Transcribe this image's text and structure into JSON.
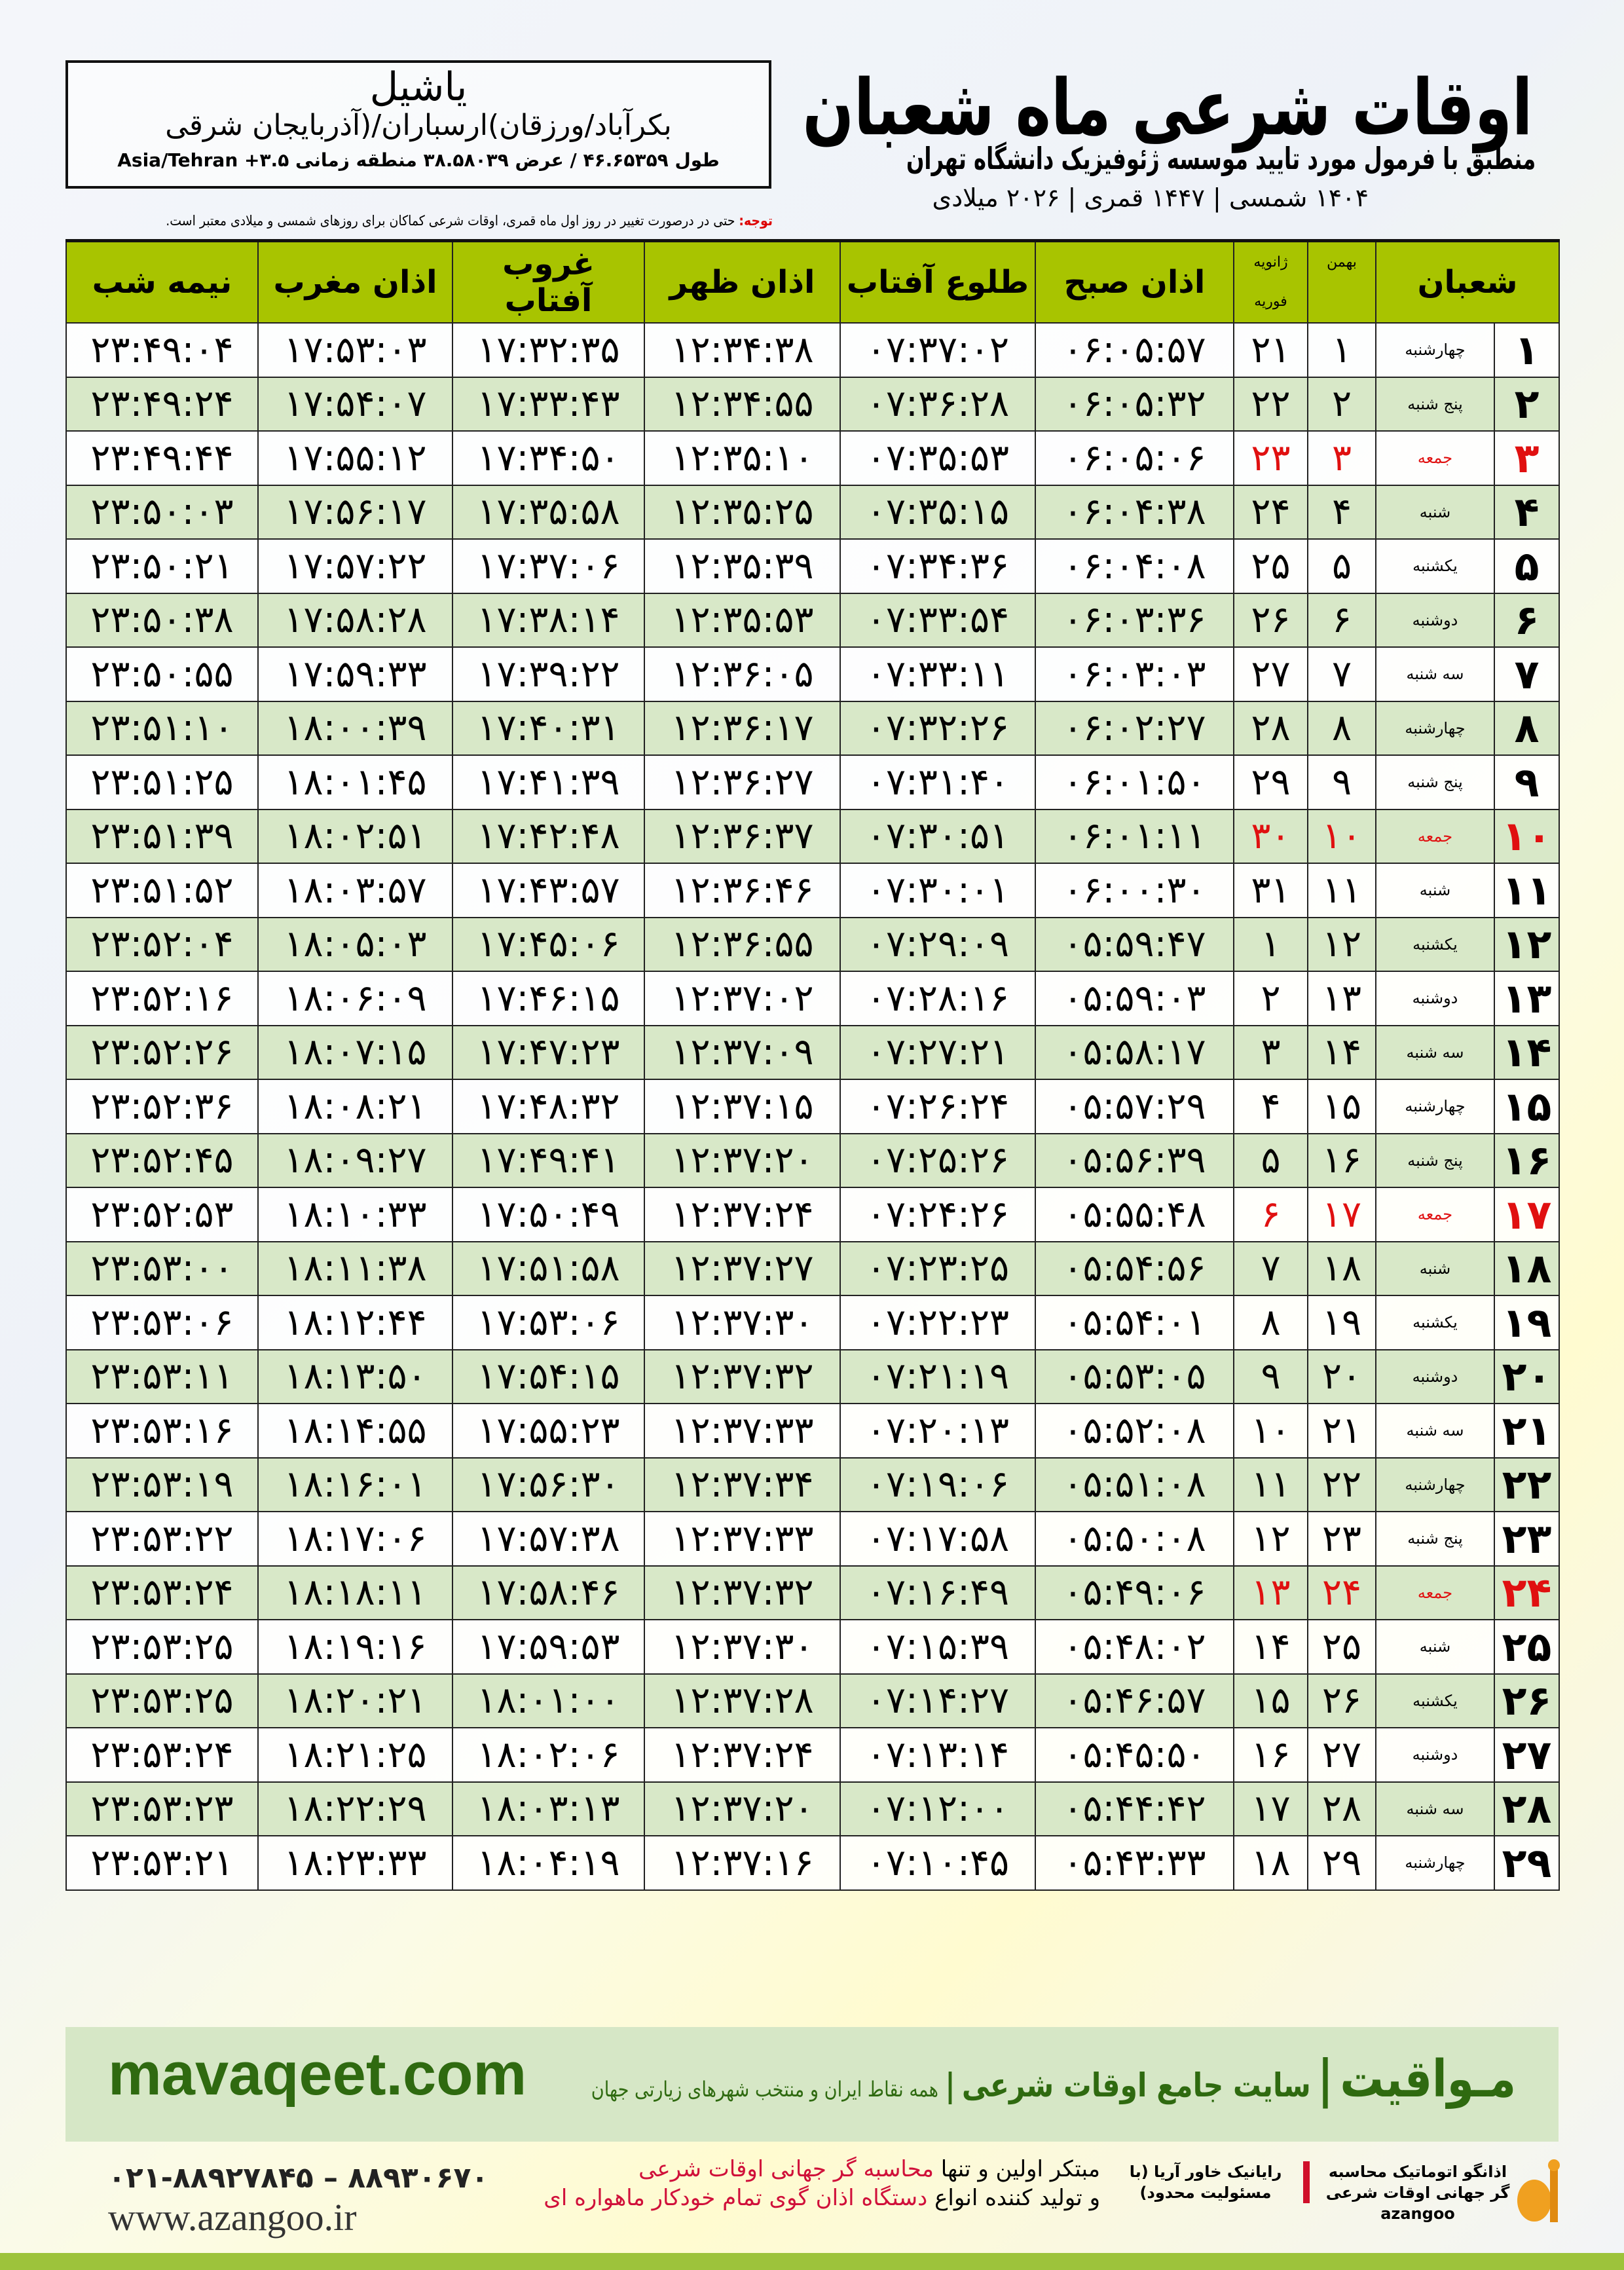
{
  "header": {
    "title": "اوقات شرعی ماه شعبان",
    "subtitle": "منطبق با فرمول مورد تایید موسسه ژئوفیزیک دانشگاه تهران",
    "dateline": "۱۴۰۴ شمسی | ۱۴۴۷ قمری | ۲۰۲۶ میلادی"
  },
  "location": {
    "name": "یاشیل",
    "region": "بکرآباد/ورزقان)ارسباران/(آذربایجان شرقی",
    "coords": "طول ۴۶.۶۵۳۵۹ / عرض ۳۸.۵۸۰۳۹ منطقه زمانی ۳.۵+ Asia/Tehran"
  },
  "note": {
    "label": "توجه:",
    "text": " حتی در درصورت تغییر در روز اول ماه قمری، اوقات شرعی کماکان برای روزهای شمسی و میلادی معتبر است."
  },
  "table": {
    "headers": {
      "shaban": "شعبان",
      "bahman": "بهمن",
      "greg_top": "ژانویه",
      "greg_bottom": "فوریه",
      "fajr": "اذان صبح",
      "sunrise": "طلوع آفتاب",
      "dhuhr": "اذان ظهر",
      "sunset": "غروب آفتاب",
      "maghrib": "اذان مغرب",
      "midnight": "نیمه شب"
    },
    "friday_color": "#e01010",
    "header_color": "#a8c400",
    "rows": [
      [
        "۱",
        "چهارشنبه",
        "۱",
        "۲۱",
        "۰۶:۰۵:۵۷",
        "۰۷:۳۷:۰۲",
        "۱۲:۳۴:۳۸",
        "۱۷:۳۲:۳۵",
        "۱۷:۵۳:۰۳",
        "۲۳:۴۹:۰۴"
      ],
      [
        "۲",
        "پنج شنبه",
        "۲",
        "۲۲",
        "۰۶:۰۵:۳۲",
        "۰۷:۳۶:۲۸",
        "۱۲:۳۴:۵۵",
        "۱۷:۳۳:۴۳",
        "۱۷:۵۴:۰۷",
        "۲۳:۴۹:۲۴"
      ],
      [
        "۳",
        "جمعه",
        "۳",
        "۲۳",
        "۰۶:۰۵:۰۶",
        "۰۷:۳۵:۵۳",
        "۱۲:۳۵:۱۰",
        "۱۷:۳۴:۵۰",
        "۱۷:۵۵:۱۲",
        "۲۳:۴۹:۴۴"
      ],
      [
        "۴",
        "شنبه",
        "۴",
        "۲۴",
        "۰۶:۰۴:۳۸",
        "۰۷:۳۵:۱۵",
        "۱۲:۳۵:۲۵",
        "۱۷:۳۵:۵۸",
        "۱۷:۵۶:۱۷",
        "۲۳:۵۰:۰۳"
      ],
      [
        "۵",
        "یکشنبه",
        "۵",
        "۲۵",
        "۰۶:۰۴:۰۸",
        "۰۷:۳۴:۳۶",
        "۱۲:۳۵:۳۹",
        "۱۷:۳۷:۰۶",
        "۱۷:۵۷:۲۲",
        "۲۳:۵۰:۲۱"
      ],
      [
        "۶",
        "دوشنبه",
        "۶",
        "۲۶",
        "۰۶:۰۳:۳۶",
        "۰۷:۳۳:۵۴",
        "۱۲:۳۵:۵۳",
        "۱۷:۳۸:۱۴",
        "۱۷:۵۸:۲۸",
        "۲۳:۵۰:۳۸"
      ],
      [
        "۷",
        "سه شنبه",
        "۷",
        "۲۷",
        "۰۶:۰۳:۰۳",
        "۰۷:۳۳:۱۱",
        "۱۲:۳۶:۰۵",
        "۱۷:۳۹:۲۲",
        "۱۷:۵۹:۳۳",
        "۲۳:۵۰:۵۵"
      ],
      [
        "۸",
        "چهارشنبه",
        "۸",
        "۲۸",
        "۰۶:۰۲:۲۷",
        "۰۷:۳۲:۲۶",
        "۱۲:۳۶:۱۷",
        "۱۷:۴۰:۳۱",
        "۱۸:۰۰:۳۹",
        "۲۳:۵۱:۱۰"
      ],
      [
        "۹",
        "پنج شنبه",
        "۹",
        "۲۹",
        "۰۶:۰۱:۵۰",
        "۰۷:۳۱:۴۰",
        "۱۲:۳۶:۲۷",
        "۱۷:۴۱:۳۹",
        "۱۸:۰۱:۴۵",
        "۲۳:۵۱:۲۵"
      ],
      [
        "۱۰",
        "جمعه",
        "۱۰",
        "۳۰",
        "۰۶:۰۱:۱۱",
        "۰۷:۳۰:۵۱",
        "۱۲:۳۶:۳۷",
        "۱۷:۴۲:۴۸",
        "۱۸:۰۲:۵۱",
        "۲۳:۵۱:۳۹"
      ],
      [
        "۱۱",
        "شنبه",
        "۱۱",
        "۳۱",
        "۰۶:۰۰:۳۰",
        "۰۷:۳۰:۰۱",
        "۱۲:۳۶:۴۶",
        "۱۷:۴۳:۵۷",
        "۱۸:۰۳:۵۷",
        "۲۳:۵۱:۵۲"
      ],
      [
        "۱۲",
        "یکشنبه",
        "۱۲",
        "۱",
        "۰۵:۵۹:۴۷",
        "۰۷:۲۹:۰۹",
        "۱۲:۳۶:۵۵",
        "۱۷:۴۵:۰۶",
        "۱۸:۰۵:۰۳",
        "۲۳:۵۲:۰۴"
      ],
      [
        "۱۳",
        "دوشنبه",
        "۱۳",
        "۲",
        "۰۵:۵۹:۰۳",
        "۰۷:۲۸:۱۶",
        "۱۲:۳۷:۰۲",
        "۱۷:۴۶:۱۵",
        "۱۸:۰۶:۰۹",
        "۲۳:۵۲:۱۶"
      ],
      [
        "۱۴",
        "سه شنبه",
        "۱۴",
        "۳",
        "۰۵:۵۸:۱۷",
        "۰۷:۲۷:۲۱",
        "۱۲:۳۷:۰۹",
        "۱۷:۴۷:۲۳",
        "۱۸:۰۷:۱۵",
        "۲۳:۵۲:۲۶"
      ],
      [
        "۱۵",
        "چهارشنبه",
        "۱۵",
        "۴",
        "۰۵:۵۷:۲۹",
        "۰۷:۲۶:۲۴",
        "۱۲:۳۷:۱۵",
        "۱۷:۴۸:۳۲",
        "۱۸:۰۸:۲۱",
        "۲۳:۵۲:۳۶"
      ],
      [
        "۱۶",
        "پنج شنبه",
        "۱۶",
        "۵",
        "۰۵:۵۶:۳۹",
        "۰۷:۲۵:۲۶",
        "۱۲:۳۷:۲۰",
        "۱۷:۴۹:۴۱",
        "۱۸:۰۹:۲۷",
        "۲۳:۵۲:۴۵"
      ],
      [
        "۱۷",
        "جمعه",
        "۱۷",
        "۶",
        "۰۵:۵۵:۴۸",
        "۰۷:۲۴:۲۶",
        "۱۲:۳۷:۲۴",
        "۱۷:۵۰:۴۹",
        "۱۸:۱۰:۳۳",
        "۲۳:۵۲:۵۳"
      ],
      [
        "۱۸",
        "شنبه",
        "۱۸",
        "۷",
        "۰۵:۵۴:۵۶",
        "۰۷:۲۳:۲۵",
        "۱۲:۳۷:۲۷",
        "۱۷:۵۱:۵۸",
        "۱۸:۱۱:۳۸",
        "۲۳:۵۳:۰۰"
      ],
      [
        "۱۹",
        "یکشنبه",
        "۱۹",
        "۸",
        "۰۵:۵۴:۰۱",
        "۰۷:۲۲:۲۳",
        "۱۲:۳۷:۳۰",
        "۱۷:۵۳:۰۶",
        "۱۸:۱۲:۴۴",
        "۲۳:۵۳:۰۶"
      ],
      [
        "۲۰",
        "دوشنبه",
        "۲۰",
        "۹",
        "۰۵:۵۳:۰۵",
        "۰۷:۲۱:۱۹",
        "۱۲:۳۷:۳۲",
        "۱۷:۵۴:۱۵",
        "۱۸:۱۳:۵۰",
        "۲۳:۵۳:۱۱"
      ],
      [
        "۲۱",
        "سه شنبه",
        "۲۱",
        "۱۰",
        "۰۵:۵۲:۰۸",
        "۰۷:۲۰:۱۳",
        "۱۲:۳۷:۳۳",
        "۱۷:۵۵:۲۳",
        "۱۸:۱۴:۵۵",
        "۲۳:۵۳:۱۶"
      ],
      [
        "۲۲",
        "چهارشنبه",
        "۲۲",
        "۱۱",
        "۰۵:۵۱:۰۸",
        "۰۷:۱۹:۰۶",
        "۱۲:۳۷:۳۴",
        "۱۷:۵۶:۳۰",
        "۱۸:۱۶:۰۱",
        "۲۳:۵۳:۱۹"
      ],
      [
        "۲۳",
        "پنج شنبه",
        "۲۳",
        "۱۲",
        "۰۵:۵۰:۰۸",
        "۰۷:۱۷:۵۸",
        "۱۲:۳۷:۳۳",
        "۱۷:۵۷:۳۸",
        "۱۸:۱۷:۰۶",
        "۲۳:۵۳:۲۲"
      ],
      [
        "۲۴",
        "جمعه",
        "۲۴",
        "۱۳",
        "۰۵:۴۹:۰۶",
        "۰۷:۱۶:۴۹",
        "۱۲:۳۷:۳۲",
        "۱۷:۵۸:۴۶",
        "۱۸:۱۸:۱۱",
        "۲۳:۵۳:۲۴"
      ],
      [
        "۲۵",
        "شنبه",
        "۲۵",
        "۱۴",
        "۰۵:۴۸:۰۲",
        "۰۷:۱۵:۳۹",
        "۱۲:۳۷:۳۰",
        "۱۷:۵۹:۵۳",
        "۱۸:۱۹:۱۶",
        "۲۳:۵۳:۲۵"
      ],
      [
        "۲۶",
        "یکشنبه",
        "۲۶",
        "۱۵",
        "۰۵:۴۶:۵۷",
        "۰۷:۱۴:۲۷",
        "۱۲:۳۷:۲۸",
        "۱۸:۰۱:۰۰",
        "۱۸:۲۰:۲۱",
        "۲۳:۵۳:۲۵"
      ],
      [
        "۲۷",
        "دوشنبه",
        "۲۷",
        "۱۶",
        "۰۵:۴۵:۵۰",
        "۰۷:۱۳:۱۴",
        "۱۲:۳۷:۲۴",
        "۱۸:۰۲:۰۶",
        "۱۸:۲۱:۲۵",
        "۲۳:۵۳:۲۴"
      ],
      [
        "۲۸",
        "سه شنبه",
        "۲۸",
        "۱۷",
        "۰۵:۴۴:۴۲",
        "۰۷:۱۲:۰۰",
        "۱۲:۳۷:۲۰",
        "۱۸:۰۳:۱۳",
        "۱۸:۲۲:۲۹",
        "۲۳:۵۳:۲۳"
      ],
      [
        "۲۹",
        "چهارشنبه",
        "۲۹",
        "۱۸",
        "۰۵:۴۳:۳۳",
        "۰۷:۱۰:۴۵",
        "۱۲:۳۷:۱۶",
        "۱۸:۰۴:۱۹",
        "۱۸:۲۳:۳۳",
        "۲۳:۵۳:۲۱"
      ]
    ]
  },
  "footer": {
    "site": "mavaqeet.com",
    "brand": "مـواقیت",
    "brand_sub": "سایت جامع اوقات شرعی",
    "brand_tag": "همه نقاط ایران و منتخب شهرهای زیارتی جهان",
    "phone": "۰۲۱-۸۸۹۲۷۸۴۵ – ۸۸۹۳۰۶۷۰",
    "web": "www.azangoo.ir",
    "promo1_a": "مبتکر اولین و تنها ",
    "promo1_b": "محاسبه گر جهانی اوقات شرعی",
    "promo2_a": "و تولید کننده انواع ",
    "promo2_b": "دستگاه اذان گوی تمام خودکار ماهواره ای",
    "logo1": "رایانیک خاور آریا (با مسئولیت محدود)",
    "logo2": "اذانگو اتوماتیک محاسبه گر جهانی اوقات شرعی azangoo"
  }
}
